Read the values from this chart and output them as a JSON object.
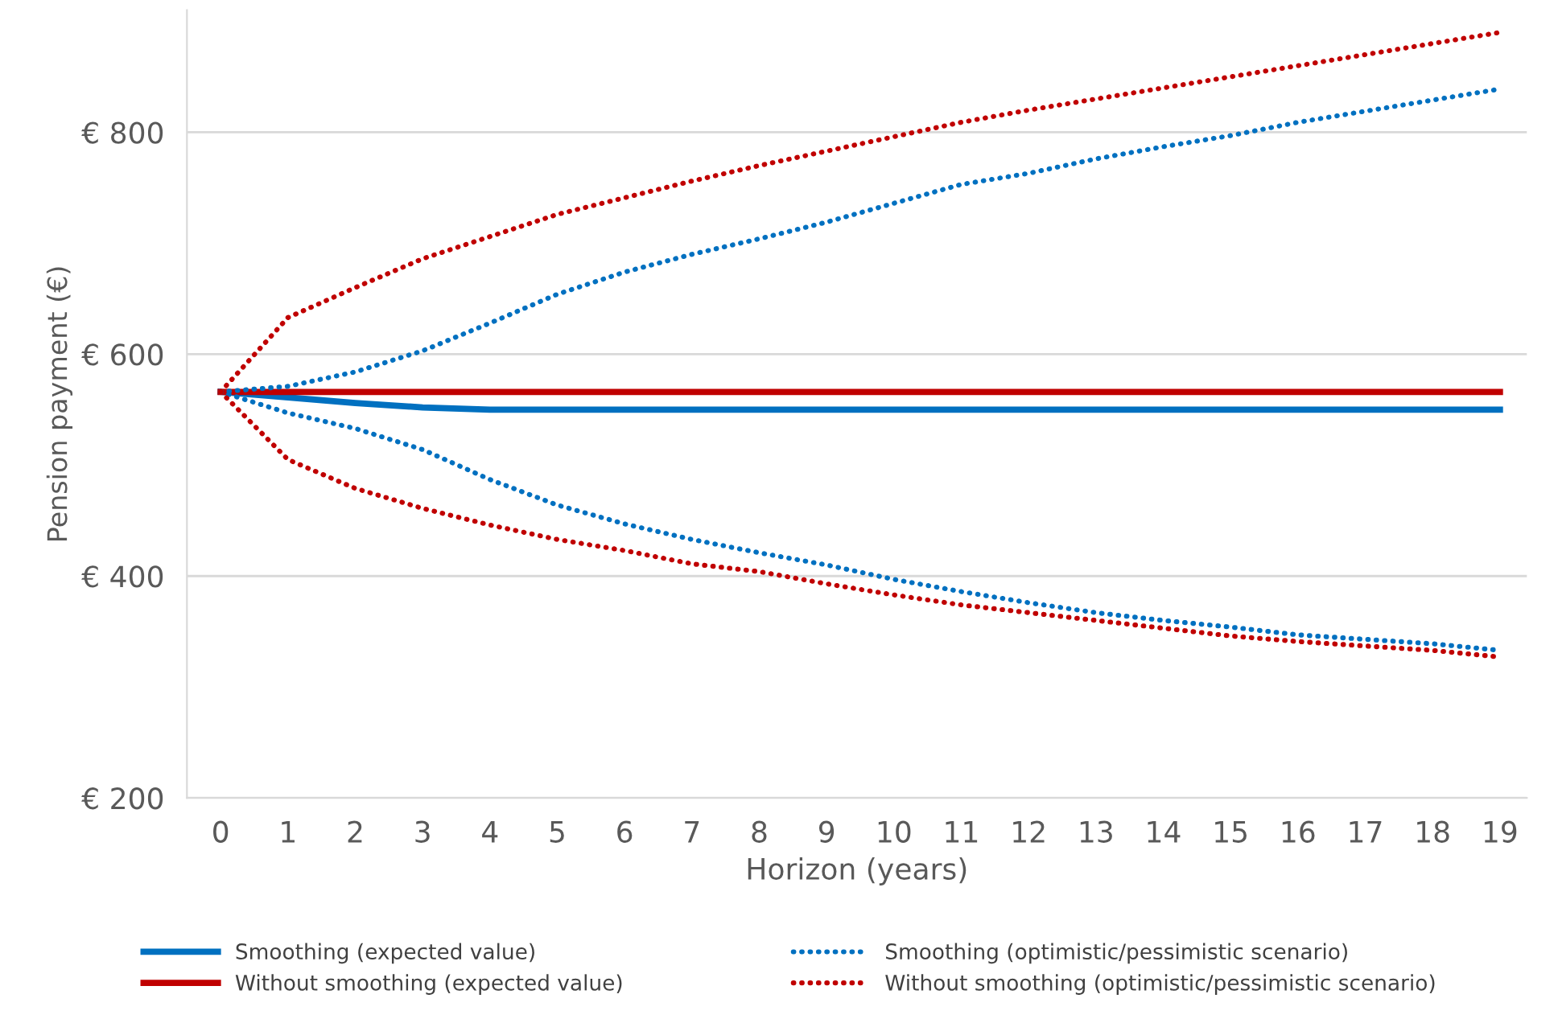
{
  "chart_data": {
    "type": "line",
    "xlabel": "Horizon (years)",
    "ylabel": "Pension payment (€)",
    "categories": [
      "0",
      "1",
      "2",
      "3",
      "4",
      "5",
      "6",
      "7",
      "8",
      "9",
      "10",
      "11",
      "12",
      "13",
      "14",
      "15",
      "16",
      "17",
      "18",
      "19"
    ],
    "series": [
      {
        "name": "Smoothing (expected value)",
        "color": "#0070c0",
        "line_style": "solid",
        "values": [
          566,
          561,
          556,
          552,
          550,
          550,
          550,
          550,
          550,
          550,
          550,
          550,
          550,
          550,
          550,
          550,
          550,
          550,
          550,
          550
        ]
      },
      {
        "name": "Without smoothing (expected value)",
        "color": "#c00000",
        "line_style": "solid",
        "values": [
          566,
          566,
          566,
          566,
          566,
          566,
          566,
          566,
          566,
          566,
          566,
          566,
          566,
          566,
          566,
          566,
          566,
          566,
          566,
          566
        ]
      },
      {
        "name": "Smoothing (optimistic/pessimistic scenario)",
        "color": "#0070c0",
        "line_style": "dotted",
        "values": [
          566,
          571,
          584,
          603,
          628,
          654,
          674,
          690,
          704,
          719,
          736,
          753,
          763,
          776,
          787,
          797,
          809,
          819,
          829,
          839
        ]
      },
      {
        "color": "#0070c0",
        "line_style": "dotted",
        "values": [
          566,
          547,
          533,
          514,
          487,
          464,
          447,
          433,
          421,
          410,
          397,
          386,
          376,
          367,
          360,
          354,
          347,
          343,
          339,
          333
        ]
      },
      {
        "name": "Without smoothing (optimistic/pessimistic scenario)",
        "color": "#c00000",
        "line_style": "dotted",
        "values": [
          566,
          633,
          660,
          686,
          706,
          726,
          741,
          756,
          770,
          783,
          796,
          809,
          820,
          830,
          840,
          850,
          860,
          870,
          880,
          890
        ]
      },
      {
        "color": "#c00000",
        "line_style": "dotted",
        "values": [
          566,
          505,
          479,
          461,
          446,
          433,
          423,
          411,
          404,
          393,
          383,
          374,
          367,
          360,
          353,
          346,
          341,
          337,
          333,
          327
        ]
      }
    ],
    "ylim": [
      200,
      910
    ],
    "yticks": [
      {
        "value": 200,
        "label": "€ 200"
      },
      {
        "value": 400,
        "label": "€ 400"
      },
      {
        "value": 600,
        "label": "€ 600"
      },
      {
        "value": 800,
        "label": "€ 800"
      }
    ],
    "grid": "y",
    "legend": "bottom",
    "marker": "none"
  }
}
